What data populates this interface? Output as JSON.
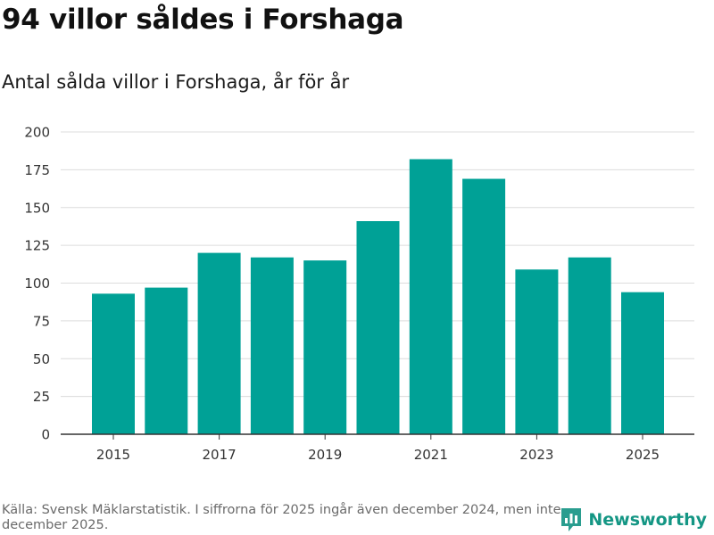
{
  "title": "94 villor såldes i Forshaga",
  "subtitle": "Antal sålda villor i Forshaga, år för år",
  "footer": {
    "source": "Källa: Svensk Mäklarstatistik. I siffrorna för 2025 ingår även december 2024, men inte december 2025.",
    "brand": "Newsworthy"
  },
  "colors": {
    "bar": "#00a196",
    "grid": "#dcdcdc",
    "axis": "#333333",
    "brand": "#149684"
  },
  "chart_data": {
    "type": "bar",
    "title": "94 villor såldes i Forshaga",
    "subtitle": "Antal sålda villor i Forshaga, år för år",
    "xlabel": "",
    "ylabel": "",
    "categories": [
      "2015",
      "2016",
      "2017",
      "2018",
      "2019",
      "2020",
      "2021",
      "2022",
      "2023",
      "2024",
      "2025"
    ],
    "values": [
      93,
      97,
      120,
      117,
      115,
      141,
      182,
      169,
      109,
      117,
      94
    ],
    "x_tick_labels": [
      "2015",
      "2017",
      "2019",
      "2021",
      "2023",
      "2025"
    ],
    "y_ticks": [
      0,
      25,
      50,
      75,
      100,
      125,
      150,
      175,
      200
    ],
    "ylim": [
      0,
      200
    ],
    "grid": true,
    "legend": "none"
  }
}
